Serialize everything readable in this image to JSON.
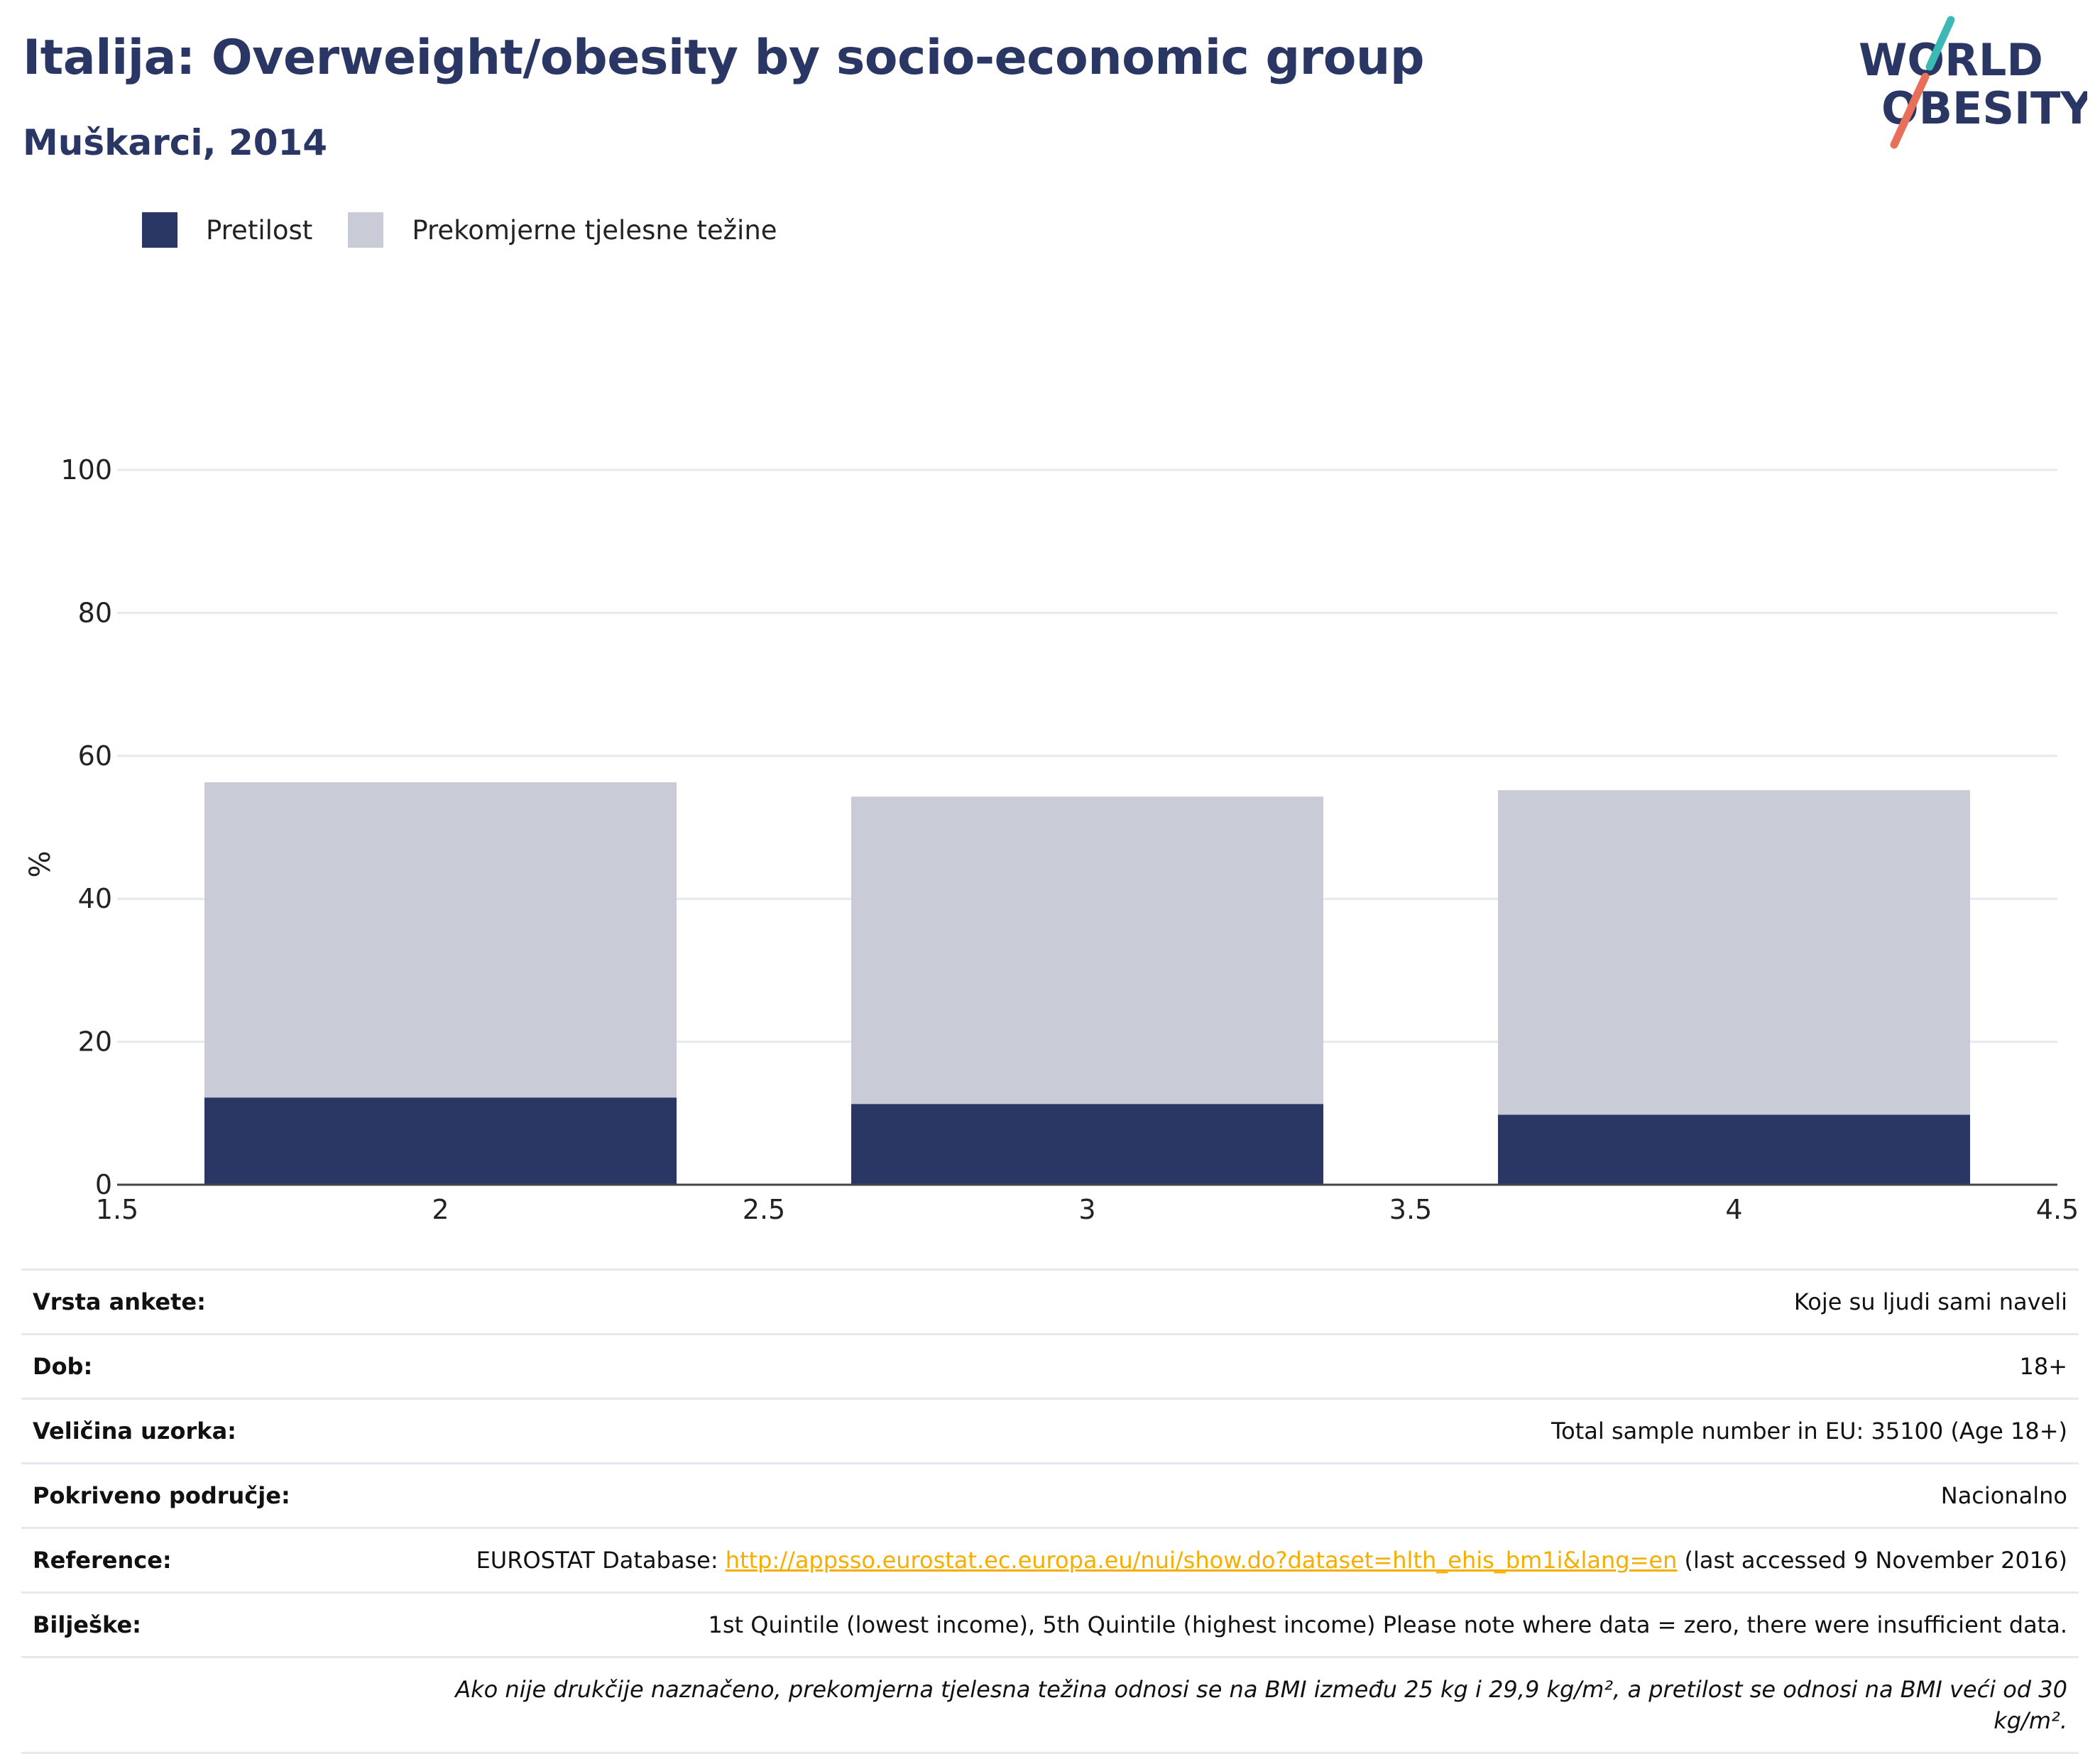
{
  "header": {
    "title": "Italija: Overweight/obesity by socio-economic group",
    "subtitle": "Muškarci, 2014"
  },
  "logo": {
    "line1": "WORLD",
    "line2": "OBESITY"
  },
  "colors": {
    "obesity": "#2a3663",
    "overweight": "#c9ccd6",
    "title": "#2a3663",
    "link": "#f5ae00",
    "logo_teal": "#3cb8b5",
    "logo_coral": "#e8705a"
  },
  "legend": {
    "items": [
      {
        "label": "Pretilost",
        "color": "#2a3663"
      },
      {
        "label": "Prekomjerne tjelesne težine",
        "color": "#c9ccd6"
      }
    ]
  },
  "chart_data": {
    "type": "bar",
    "stacked": true,
    "x": [
      2,
      3,
      4
    ],
    "series": [
      {
        "name": "Pretilost",
        "color": "#2a3663",
        "values": [
          12.2,
          11.3,
          9.8
        ]
      },
      {
        "name": "Prekomjerne tjelesne težine",
        "color": "#c9ccd6",
        "values": [
          44.1,
          43.0,
          45.4
        ]
      }
    ],
    "xlim": [
      1.5,
      4.5
    ],
    "xticks": [
      1.5,
      2,
      2.5,
      3,
      3.5,
      4,
      4.5
    ],
    "ylim": [
      0,
      100
    ],
    "yticks": [
      0,
      20,
      40,
      60,
      80,
      100
    ],
    "ylabel": "%",
    "xlabel": "",
    "grid": true,
    "legend_position": "top-left"
  },
  "info": {
    "survey_type": {
      "label": "Vrsta ankete:",
      "value": "Koje su ljudi sami naveli"
    },
    "age": {
      "label": "Dob:",
      "value": "18+"
    },
    "sample_size": {
      "label": "Veličina uzorka:",
      "value": "Total sample number in EU: 35100 (Age 18+)"
    },
    "area": {
      "label": "Pokriveno područje:",
      "value": "Nacionalno"
    },
    "references": {
      "label": "Reference:",
      "prefix": "EUROSTAT Database: ",
      "link": "http://appsso.eurostat.ec.europa.eu/nui/show.do?dataset=hlth_ehis_bm1i&lang=en",
      "suffix": " (last accessed 9 November 2016)"
    },
    "notes": {
      "label": "Bilješke:",
      "value": "1st Quintile (lowest income), 5th Quintile (highest income) Please note where data = zero, there were insufficient data."
    },
    "definition": "Ako nije drukčije naznačeno, prekomjerna tjelesna težina odnosi se na BMI između 25 kg i 29,9 kg/m², a pretilost se odnosi na BMI veći od 30 kg/m²."
  }
}
